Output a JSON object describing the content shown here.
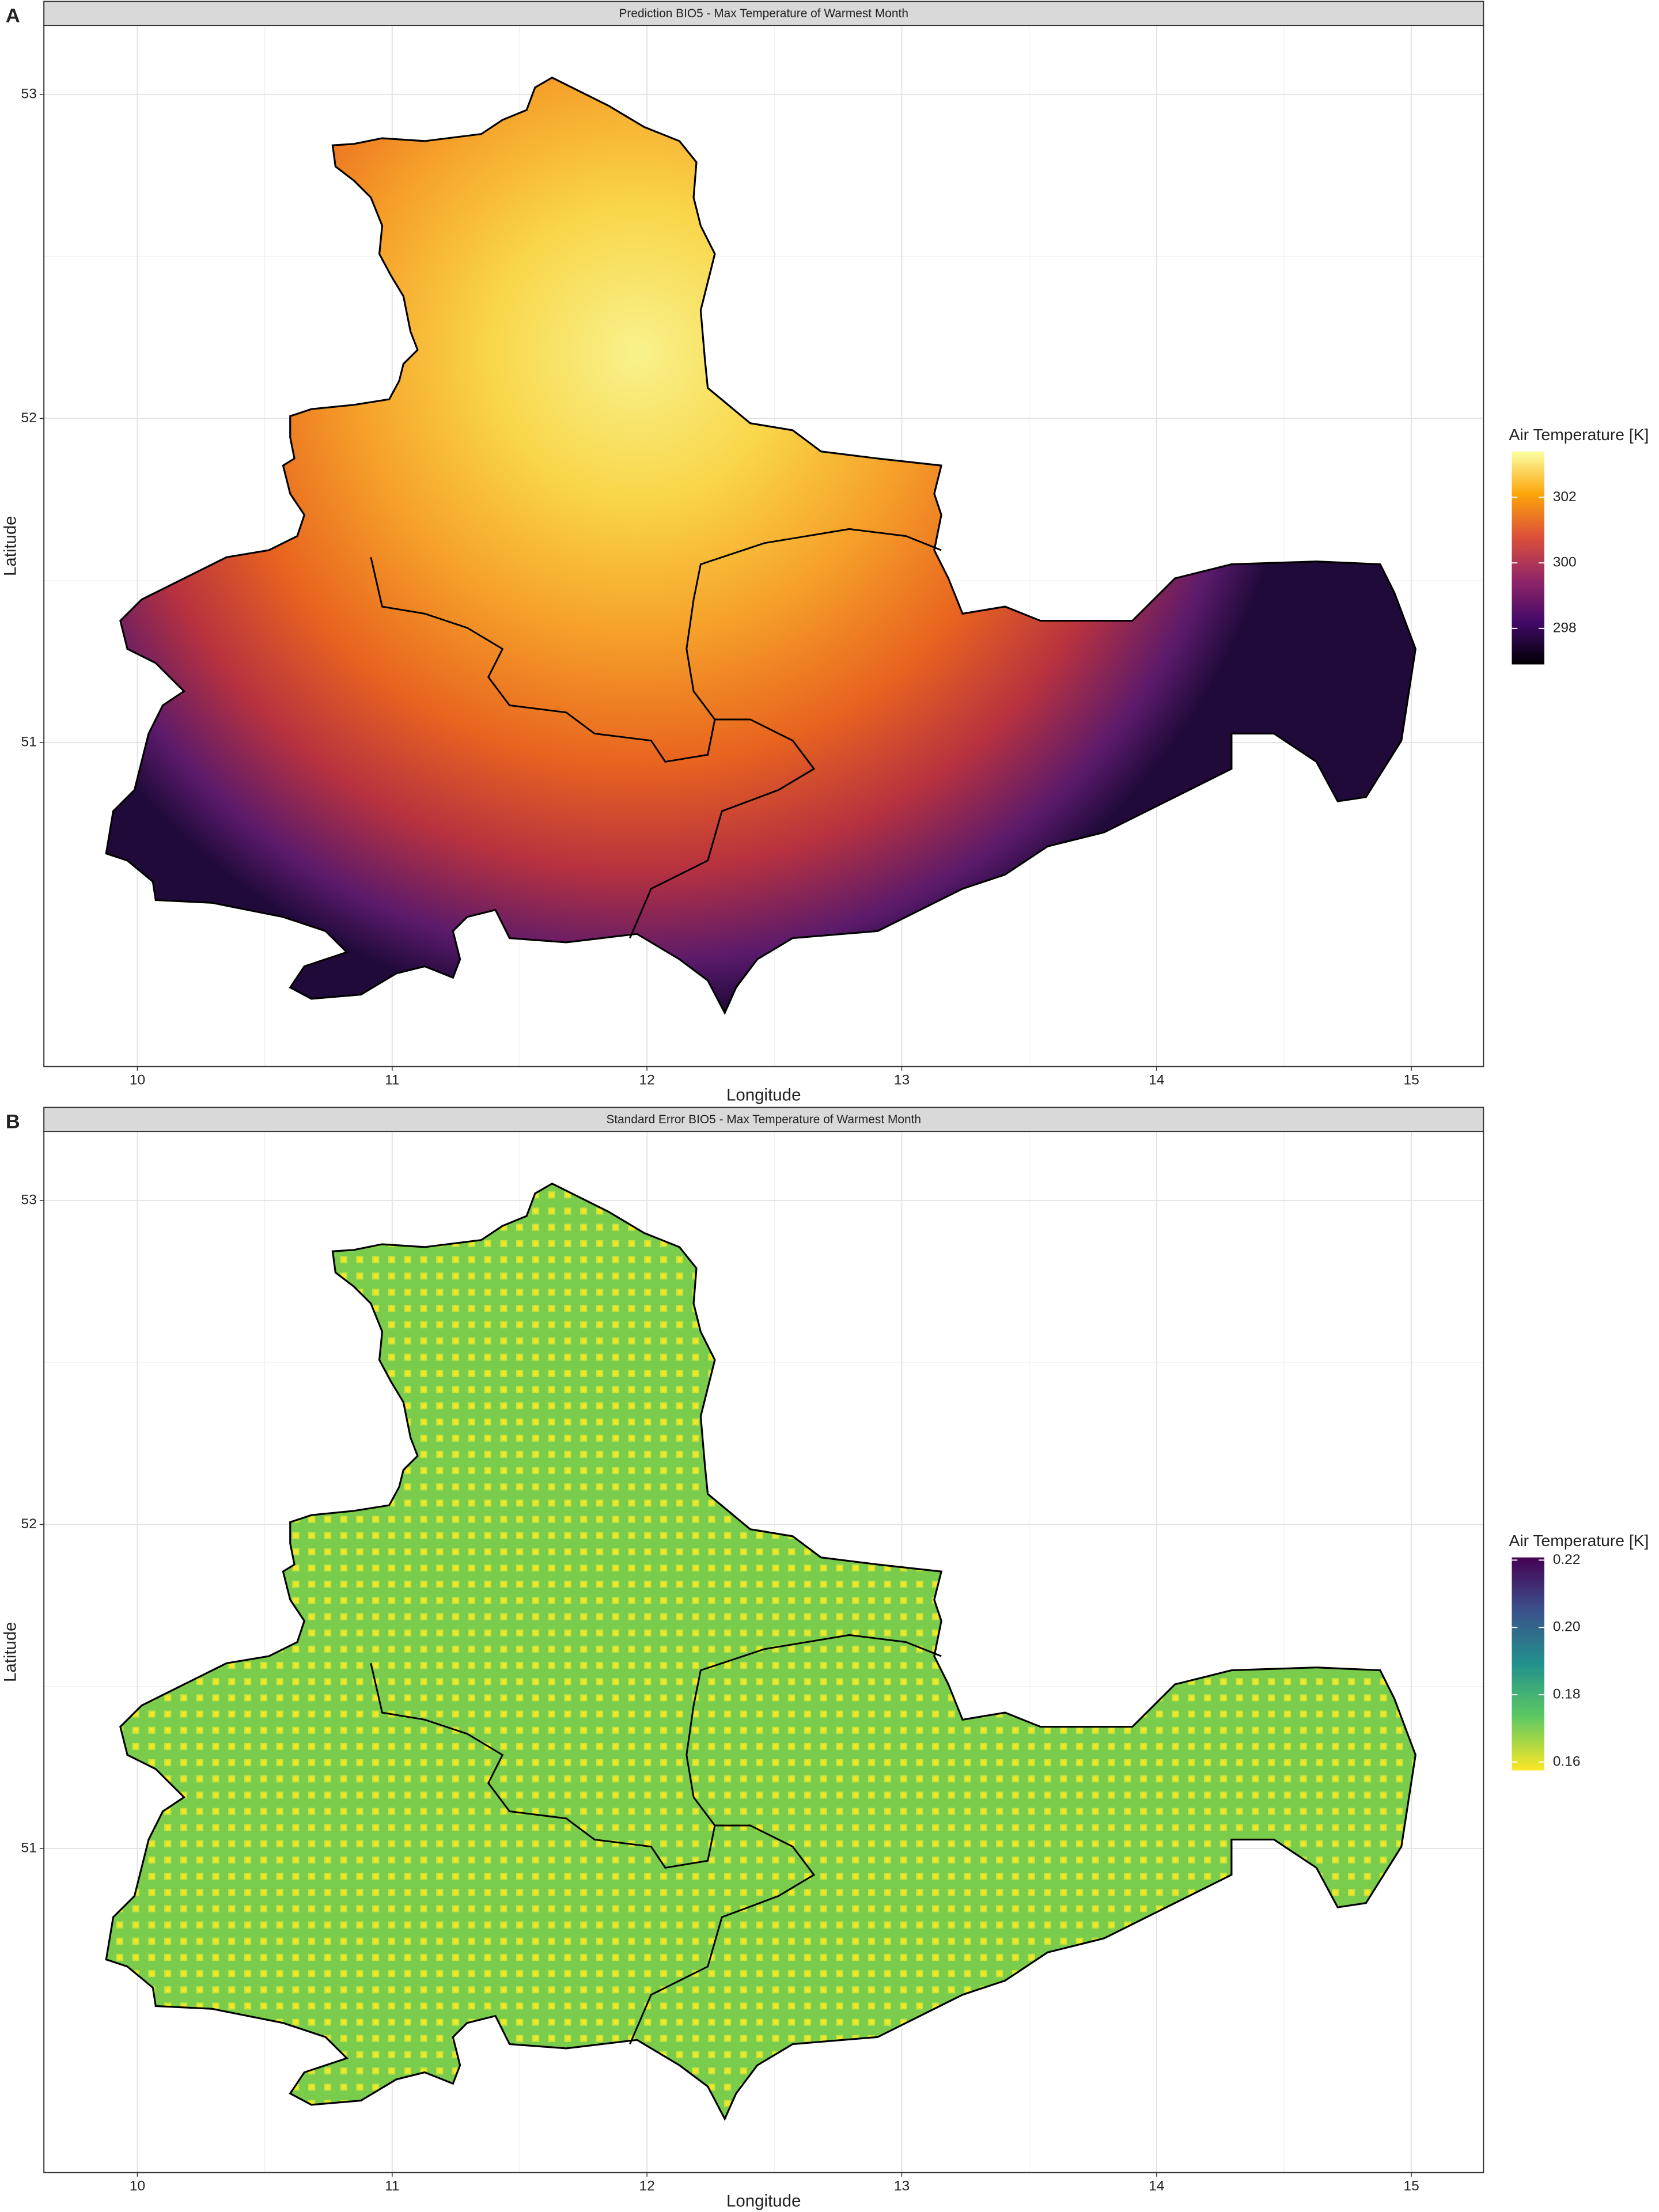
{
  "chart_data": [
    {
      "type": "raster-map",
      "panel": "A",
      "title": "Prediction BIO5 - Max Temperature of Warmest Month",
      "x_label": "Longitude",
      "y_label": "Latitude",
      "legend_title": "Air Temperature [K]",
      "xlim": [
        9.633,
        15.283
      ],
      "ylim": [
        50.0,
        53.213
      ],
      "xticks": [
        10,
        11,
        12,
        13,
        14,
        15
      ],
      "yticks": [
        51,
        52,
        53
      ],
      "grid": true,
      "colorbar": {
        "lim": [
          296.9,
          303.4
        ],
        "ticks": [
          298,
          300,
          302
        ],
        "colors": [
          "#000004",
          "#420a68",
          "#932667",
          "#dd513a",
          "#fca50a",
          "#fcffa4"
        ]
      }
    },
    {
      "type": "raster-map",
      "panel": "B",
      "title": "Standard Error BIO5 - Max Temperature of Warmest Month",
      "x_label": "Longitude",
      "y_label": "Latitude",
      "legend_title": "Air Temperature [K]",
      "xlim": [
        9.633,
        15.283
      ],
      "ylim": [
        50.0,
        53.213
      ],
      "xticks": [
        10,
        11,
        12,
        13,
        14,
        15
      ],
      "yticks": [
        51,
        52,
        53
      ],
      "grid": true,
      "colorbar": {
        "lim": [
          0.1575,
          0.2208
        ],
        "ticks": [
          0.16,
          0.18,
          {
            "value": 0.2,
            "label": "0.20"
          },
          0.22
        ],
        "colors": [
          "#fde725",
          "#5ec962",
          "#21918c",
          "#3b528b",
          "#440154"
        ]
      }
    }
  ]
}
